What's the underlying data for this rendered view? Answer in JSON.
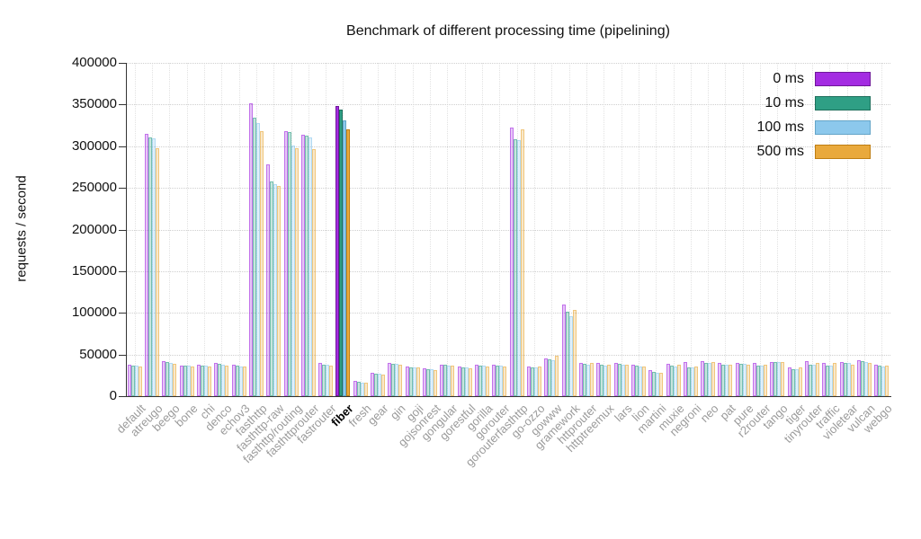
{
  "chart_data": {
    "type": "bar",
    "title": "Benchmark of different processing time (pipelining)",
    "xlabel": "",
    "ylabel": "requests / second",
    "ylim": [
      0,
      400000
    ],
    "ytick_interval": 50000,
    "yticks": [
      0,
      50000,
      100000,
      150000,
      200000,
      250000,
      300000,
      350000,
      400000
    ],
    "grid": true,
    "legend_position": "top-right-inside",
    "highlight_category": "fiber",
    "categories": [
      "default",
      "atreugo",
      "beego",
      "bone",
      "chi",
      "denco",
      "echov3",
      "fasthttp",
      "fasthttp-raw",
      "fasthttp/routing",
      "fasthttprouter",
      "fastrouter",
      "fiber",
      "fresh",
      "gear",
      "gin",
      "goji",
      "gojsonrest",
      "gongular",
      "gorestful",
      "gorilla",
      "gorouter",
      "gorouterfasthttp",
      "go-ozzo",
      "gowww",
      "gramework",
      "httprouter",
      "httptreemux",
      "lars",
      "lion",
      "martini",
      "muxie",
      "negroni",
      "neo",
      "pat",
      "pure",
      "r2router",
      "tango",
      "tiger",
      "tinyrouter",
      "traffic",
      "violetear",
      "vulcan",
      "webgo"
    ],
    "series": [
      {
        "name": "0 ms",
        "color": "#a42ce2",
        "border": "#6f1899",
        "values": [
          38000,
          315000,
          42000,
          37000,
          37500,
          40000,
          38000,
          352000,
          278000,
          318000,
          314000,
          40000,
          348000,
          18000,
          28000,
          40000,
          36000,
          33000,
          38000,
          36000,
          38000,
          38000,
          322000,
          36000,
          45000,
          110000,
          40000,
          40000,
          40000,
          37500,
          31000,
          39000,
          41000,
          42000,
          40000,
          40000,
          40000,
          41500,
          35000,
          42000,
          40000,
          40500,
          43000,
          38000
        ]
      },
      {
        "name": "10 ms",
        "color": "#2f9f85",
        "border": "#1e6f5c",
        "values": [
          37000,
          311000,
          41000,
          37000,
          37000,
          38500,
          36500,
          334000,
          258000,
          317000,
          313000,
          38000,
          344000,
          17000,
          27000,
          39000,
          35000,
          32000,
          37500,
          34000,
          37000,
          37000,
          308000,
          35000,
          44000,
          101000,
          38500,
          37500,
          38500,
          36500,
          29000,
          36500,
          35000,
          40000,
          38000,
          39000,
          37000,
          41000,
          32500,
          38000,
          37000,
          40000,
          42000,
          37000
        ]
      },
      {
        "name": "100 ms",
        "color": "#8cc8ec",
        "border": "#64a5c8",
        "values": [
          37000,
          309000,
          40000,
          36500,
          36500,
          38000,
          36000,
          328000,
          254000,
          301000,
          311000,
          38000,
          331000,
          16500,
          26500,
          38500,
          35000,
          32000,
          37000,
          34000,
          36500,
          37000,
          307000,
          35000,
          43500,
          96000,
          38000,
          37000,
          38000,
          36000,
          28500,
          36000,
          35000,
          40000,
          37500,
          38500,
          37000,
          41000,
          32000,
          38000,
          36500,
          40000,
          41500,
          36000
        ]
      },
      {
        "name": "500 ms",
        "color": "#e9a93c",
        "border": "#bf7e12",
        "values": [
          36000,
          298000,
          39000,
          36000,
          36000,
          37000,
          35500,
          318000,
          252000,
          298000,
          296000,
          37000,
          320000,
          16000,
          26000,
          38000,
          34000,
          31000,
          36500,
          33500,
          36000,
          36000,
          320000,
          36000,
          49000,
          104000,
          40000,
          38000,
          38000,
          36000,
          28000,
          38000,
          36000,
          41000,
          38000,
          38000,
          37500,
          40500,
          34000,
          40000,
          40000,
          38000,
          40000,
          36500
        ]
      }
    ]
  }
}
